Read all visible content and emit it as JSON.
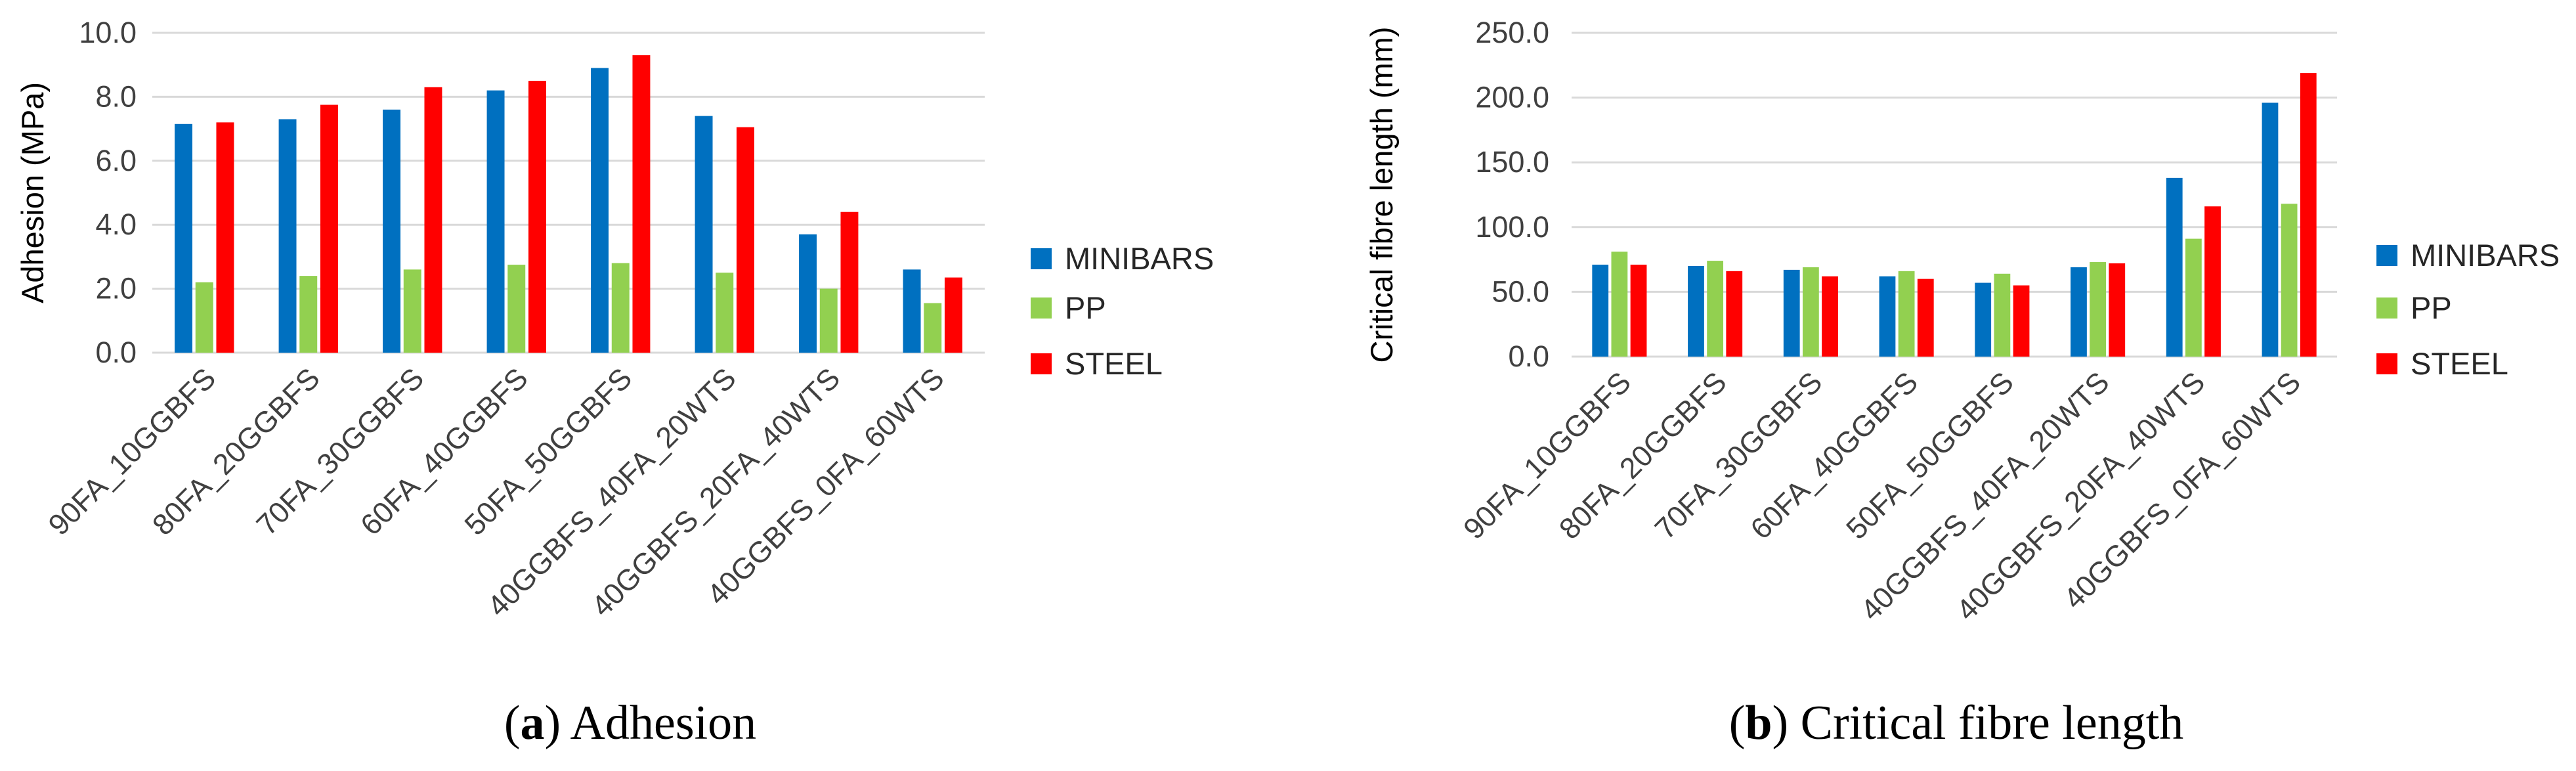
{
  "colors": {
    "MINIBARS": "#0070c0",
    "PP": "#92d050",
    "STEEL": "#ff0000"
  },
  "chart_data": [
    {
      "type": "bar",
      "title": "",
      "caption_letter": "a",
      "caption_text": " Adhesion",
      "xlabel": "",
      "ylabel": "Adhesion (MPa)",
      "ylim": [
        0,
        10
      ],
      "yticks": [
        "0.0",
        "2.0",
        "4.0",
        "6.0",
        "8.0",
        "10.0"
      ],
      "categories": [
        "90FA_10GGBFS",
        "80FA_20GGBFS",
        "70FA_30GGBFS",
        "60FA_40GGBFS",
        "50FA_50GGBFS",
        "40GGBFS_40FA_20WTS",
        "40GGBFS_20FA_40WTS",
        "40GGBFS_0FA_60WTS"
      ],
      "series": [
        {
          "name": "MINIBARS",
          "values": [
            7.15,
            7.3,
            7.6,
            8.2,
            8.9,
            7.4,
            3.7,
            2.6
          ]
        },
        {
          "name": "PP",
          "values": [
            2.2,
            2.4,
            2.6,
            2.75,
            2.8,
            2.5,
            2.0,
            1.55
          ]
        },
        {
          "name": "STEEL",
          "values": [
            7.2,
            7.75,
            8.3,
            8.5,
            9.3,
            7.05,
            4.4,
            2.35
          ]
        }
      ],
      "legend": [
        "MINIBARS",
        "PP",
        "STEEL"
      ],
      "legend_position": "right",
      "grid": true
    },
    {
      "type": "bar",
      "title": "",
      "caption_letter": "b",
      "caption_text": " Critical fibre length",
      "xlabel": "",
      "ylabel": "Critical fibre length (mm)",
      "ylim": [
        0,
        250
      ],
      "yticks": [
        "0.0",
        "50.0",
        "100.0",
        "150.0",
        "200.0",
        "250.0"
      ],
      "categories": [
        "90FA_10GGBFS",
        "80FA_20GGBFS",
        "70FA_30GGBFS",
        "60FA_40GGBFS",
        "50FA_50GGBFS",
        "40GGBFS_40FA_20WTS",
        "40GGBFS_20FA_40WTS",
        "40GGBFS_0FA_60WTS"
      ],
      "series": [
        {
          "name": "MINIBARS",
          "values": [
            71,
            70,
            67,
            62,
            57,
            69,
            138,
            196
          ]
        },
        {
          "name": "PP",
          "values": [
            81,
            74,
            69,
            66,
            64,
            73,
            91,
            118
          ]
        },
        {
          "name": "STEEL",
          "values": [
            71,
            66,
            62,
            60,
            55,
            72,
            116,
            219
          ]
        }
      ],
      "legend": [
        "MINIBARS",
        "PP",
        "STEEL"
      ],
      "legend_position": "right",
      "grid": true
    }
  ]
}
